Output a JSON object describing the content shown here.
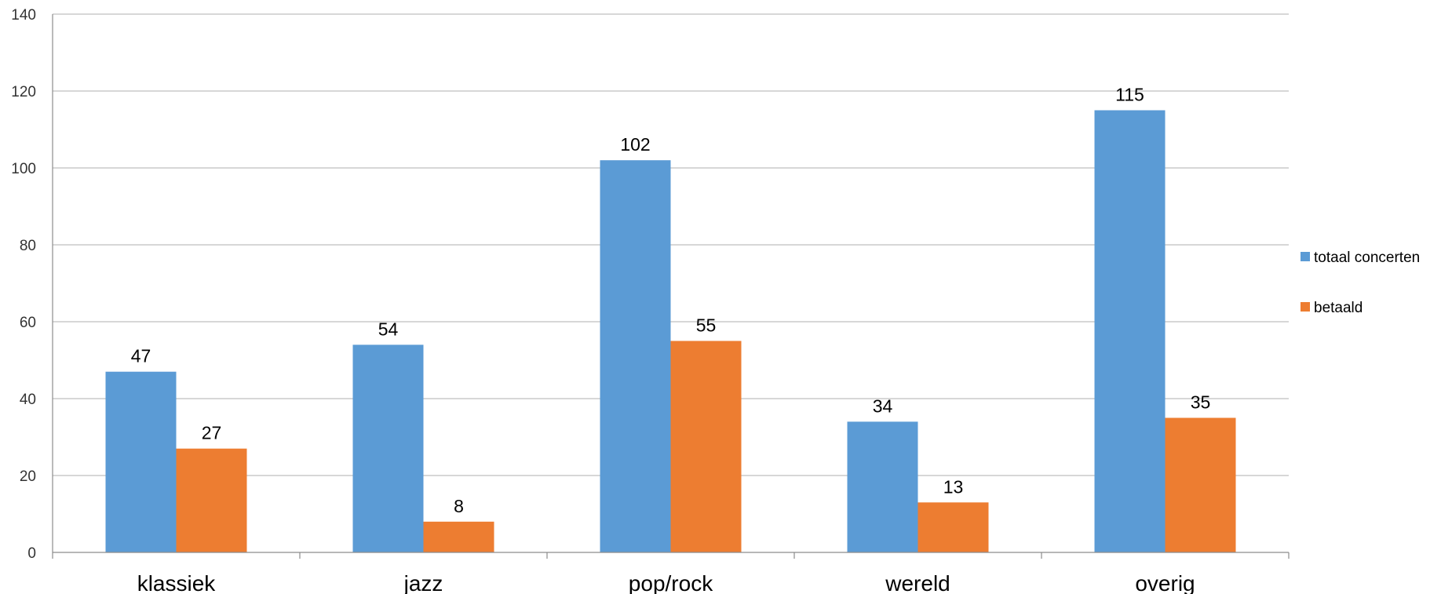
{
  "chart_data": {
    "type": "bar",
    "title": "",
    "xlabel": "",
    "ylabel": "",
    "categories": [
      "klassiek",
      "jazz",
      "pop/rock",
      "wereld",
      "overig"
    ],
    "series": [
      {
        "name": "totaal concerten",
        "values": [
          47,
          54,
          102,
          34,
          115
        ],
        "color": "#5B9BD5"
      },
      {
        "name": "betaald",
        "values": [
          27,
          8,
          55,
          13,
          35
        ],
        "color": "#ED7D31"
      }
    ],
    "ylim": [
      0,
      140
    ],
    "yticks": [
      0,
      20,
      40,
      60,
      80,
      100,
      120,
      140
    ],
    "grid": true,
    "data_labels": true,
    "legend_position": "right"
  }
}
